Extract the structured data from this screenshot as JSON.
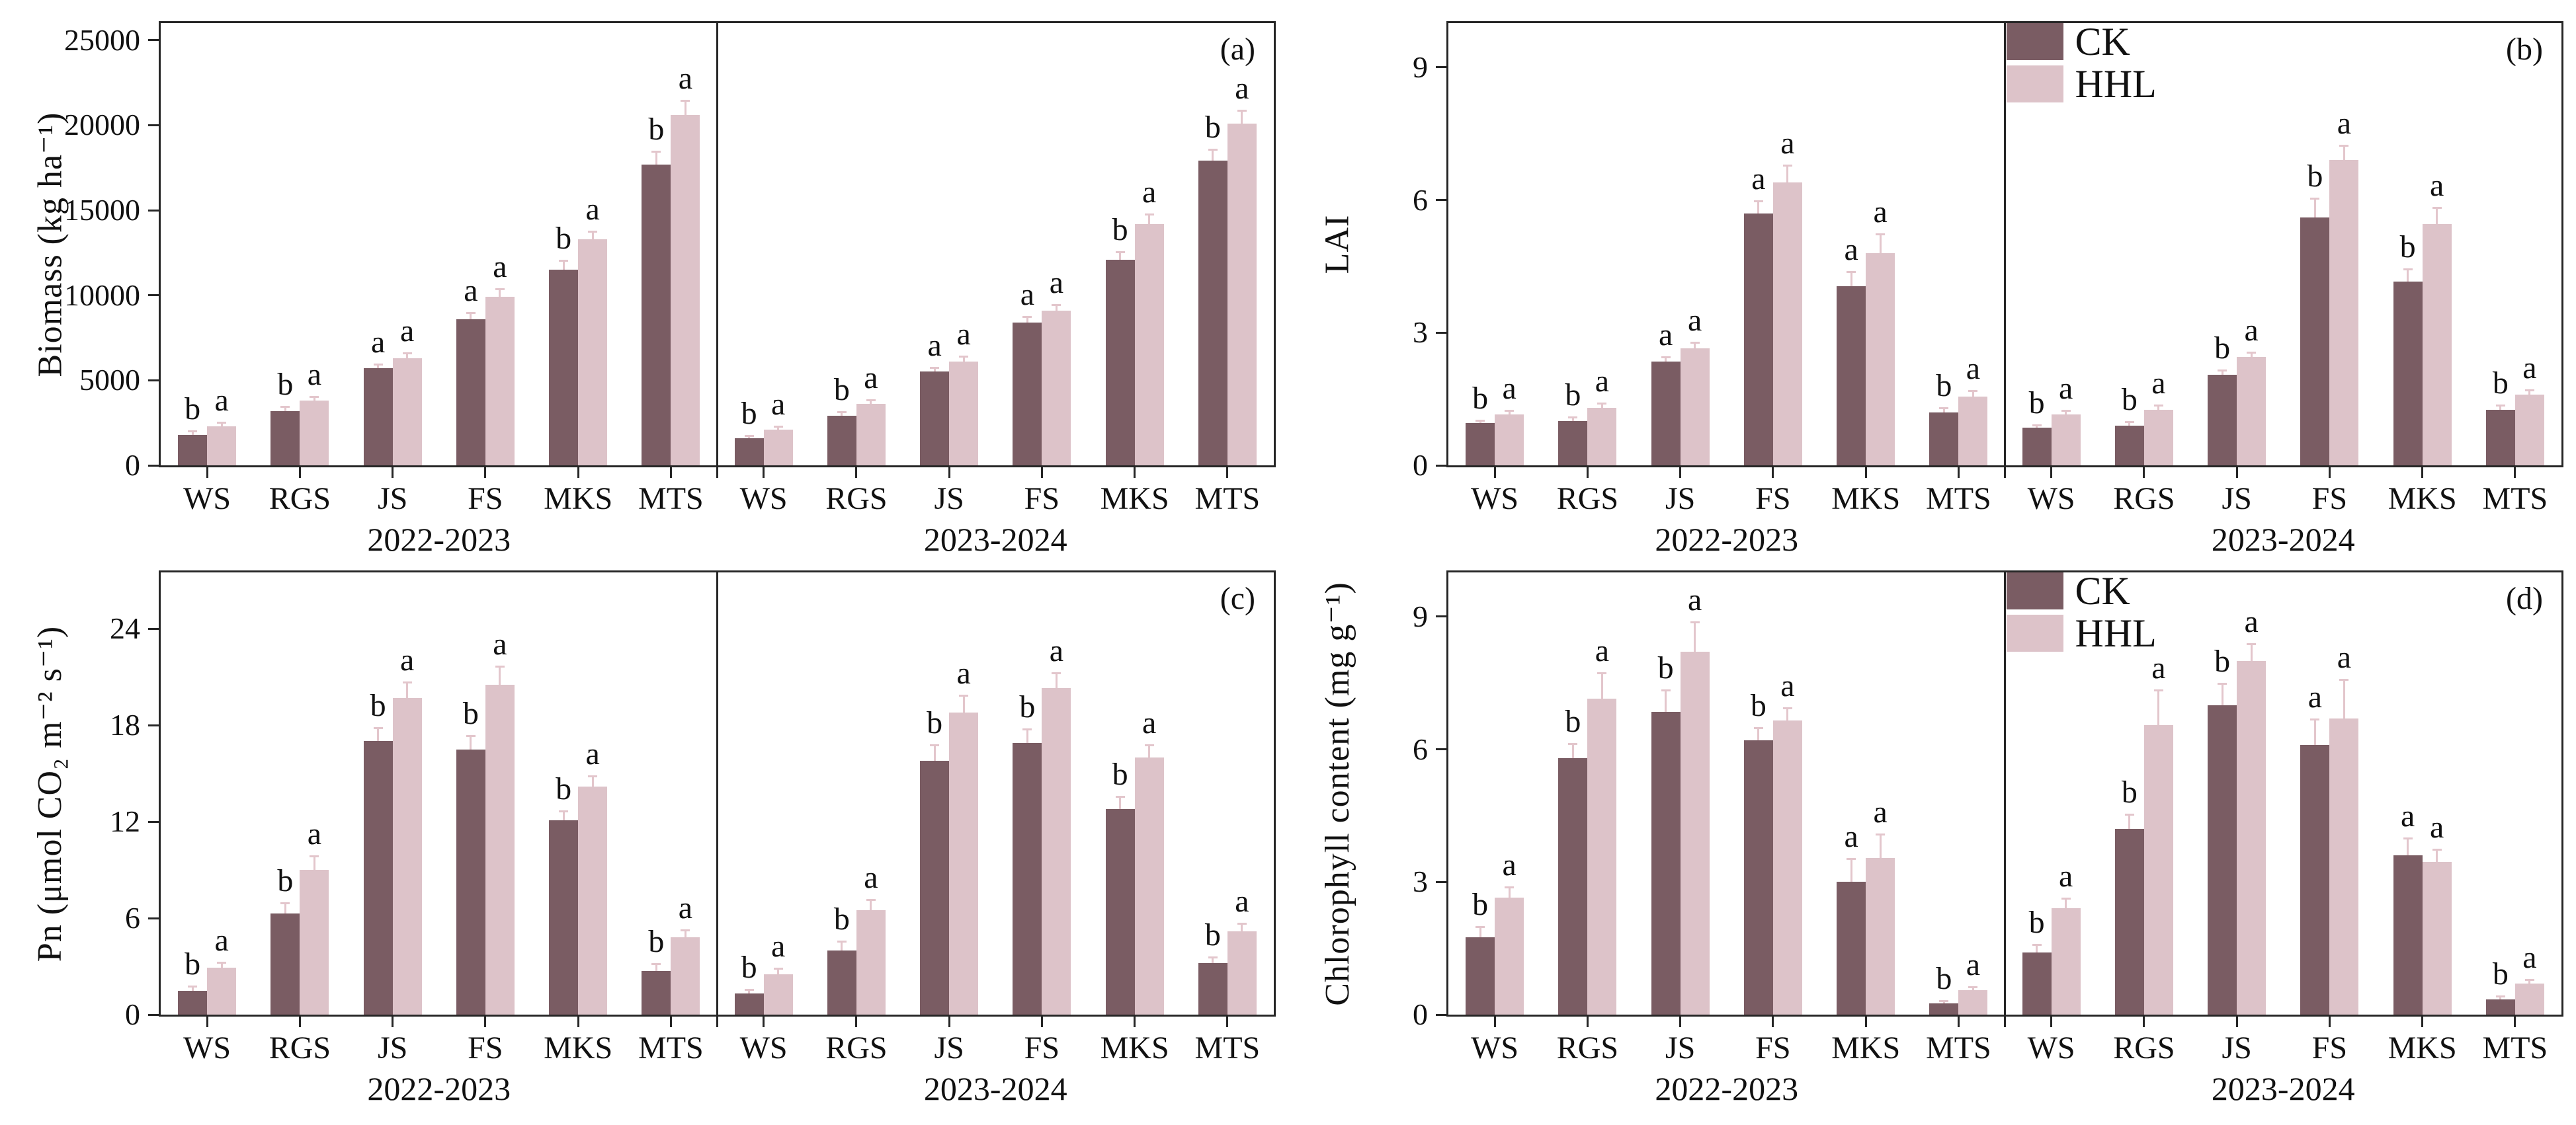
{
  "figure": {
    "kind": "four-panel grouped bar figure",
    "colors": {
      "ck_bar": "#7a5c63",
      "hhl_bar": "#ddc3c9",
      "error_bar": "#e3c6cc",
      "axis": "#262626",
      "text": "#111111"
    },
    "legend": {
      "entries": [
        {
          "label": "CK",
          "color": "#7a5c63"
        },
        {
          "label": "HHL",
          "color": "#ddc3c9"
        }
      ]
    }
  },
  "chart_data": [
    {
      "type": "bar",
      "panel_label": "(a)",
      "ylabel": "Biomass (kg ha⁻¹)",
      "yticks": [
        0,
        5000,
        10000,
        15000,
        20000,
        25000
      ],
      "ylim": [
        0,
        26000
      ],
      "categories": [
        "WS",
        "RGS",
        "JS",
        "FS",
        "MKS",
        "MTS"
      ],
      "show_legend": false,
      "groups": [
        {
          "year": "2022-2023",
          "series": [
            {
              "name": "CK",
              "values": [
                1800,
                3200,
                5700,
                8600,
                11500,
                17700
              ],
              "errors": [
                250,
                300,
                300,
                400,
                600,
                800
              ],
              "letters": [
                "b",
                "b",
                "a",
                "a",
                "b",
                "b"
              ]
            },
            {
              "name": "HHL",
              "values": [
                2300,
                3800,
                6300,
                9900,
                13300,
                20600
              ],
              "errors": [
                250,
                300,
                350,
                500,
                500,
                900
              ],
              "letters": [
                "a",
                "a",
                "a",
                "a",
                "a",
                "a"
              ]
            }
          ]
        },
        {
          "year": "2023-2024",
          "series": [
            {
              "name": "CK",
              "values": [
                1600,
                2900,
                5500,
                8400,
                12100,
                17900
              ],
              "errors": [
                200,
                300,
                300,
                400,
                500,
                700
              ],
              "letters": [
                "b",
                "b",
                "a",
                "a",
                "b",
                "b"
              ]
            },
            {
              "name": "HHL",
              "values": [
                2100,
                3600,
                6100,
                9100,
                14200,
                20100
              ],
              "errors": [
                250,
                300,
                350,
                400,
                600,
                800
              ],
              "letters": [
                "a",
                "a",
                "a",
                "a",
                "a",
                "a"
              ]
            }
          ]
        }
      ]
    },
    {
      "type": "bar",
      "panel_label": "(b)",
      "ylabel": "LAI",
      "yticks": [
        0,
        3,
        6,
        9
      ],
      "ylim": [
        0,
        10
      ],
      "categories": [
        "WS",
        "RGS",
        "JS",
        "FS",
        "MKS",
        "MTS"
      ],
      "show_legend": true,
      "groups": [
        {
          "year": "2022-2023",
          "series": [
            {
              "name": "CK",
              "values": [
                0.95,
                1.0,
                2.35,
                5.7,
                4.05,
                1.2
              ],
              "errors": [
                0.08,
                0.1,
                0.12,
                0.3,
                0.35,
                0.12
              ],
              "letters": [
                "b",
                "b",
                "a",
                "a",
                "a",
                "b"
              ]
            },
            {
              "name": "HHL",
              "values": [
                1.15,
                1.3,
                2.65,
                6.4,
                4.8,
                1.55
              ],
              "errors": [
                0.1,
                0.12,
                0.15,
                0.4,
                0.45,
                0.15
              ],
              "letters": [
                "a",
                "a",
                "a",
                "a",
                "a",
                "a"
              ]
            }
          ]
        },
        {
          "year": "2023-2024",
          "series": [
            {
              "name": "CK",
              "values": [
                0.85,
                0.9,
                2.05,
                5.6,
                4.15,
                1.25
              ],
              "errors": [
                0.08,
                0.1,
                0.12,
                0.45,
                0.3,
                0.12
              ],
              "letters": [
                "b",
                "b",
                "b",
                "b",
                "b",
                "b"
              ]
            },
            {
              "name": "HHL",
              "values": [
                1.15,
                1.25,
                2.45,
                6.9,
                5.45,
                1.6
              ],
              "errors": [
                0.1,
                0.12,
                0.12,
                0.35,
                0.4,
                0.12
              ],
              "letters": [
                "a",
                "a",
                "a",
                "a",
                "a",
                "a"
              ]
            }
          ]
        }
      ]
    },
    {
      "type": "bar",
      "panel_label": "(c)",
      "ylabel": "Pn (μmol CO₂ m⁻² s⁻¹)",
      "yticks": [
        0,
        6,
        12,
        18,
        24
      ],
      "ylim": [
        0,
        27.5
      ],
      "categories": [
        "WS",
        "RGS",
        "JS",
        "FS",
        "MKS",
        "MTS"
      ],
      "show_legend": false,
      "groups": [
        {
          "year": "2022-2023",
          "series": [
            {
              "name": "CK",
              "values": [
                1.5,
                6.3,
                17.0,
                16.5,
                12.1,
                2.7
              ],
              "errors": [
                0.3,
                0.7,
                0.9,
                0.9,
                0.6,
                0.5
              ],
              "letters": [
                "b",
                "b",
                "b",
                "b",
                "b",
                "b"
              ]
            },
            {
              "name": "HHL",
              "values": [
                2.9,
                9.0,
                19.7,
                20.5,
                14.2,
                4.8
              ],
              "errors": [
                0.4,
                0.9,
                1.0,
                1.2,
                0.7,
                0.5
              ],
              "letters": [
                "a",
                "a",
                "a",
                "a",
                "a",
                "a"
              ]
            }
          ]
        },
        {
          "year": "2023-2024",
          "series": [
            {
              "name": "CK",
              "values": [
                1.3,
                4.0,
                15.8,
                16.9,
                12.8,
                3.2
              ],
              "errors": [
                0.3,
                0.6,
                1.0,
                0.9,
                0.8,
                0.4
              ],
              "letters": [
                "b",
                "b",
                "b",
                "b",
                "b",
                "b"
              ]
            },
            {
              "name": "HHL",
              "values": [
                2.5,
                6.5,
                18.8,
                20.3,
                16.0,
                5.2
              ],
              "errors": [
                0.4,
                0.7,
                1.1,
                1.0,
                0.8,
                0.5
              ],
              "letters": [
                "a",
                "a",
                "a",
                "a",
                "a",
                "a"
              ]
            }
          ]
        }
      ]
    },
    {
      "type": "bar",
      "panel_label": "(d)",
      "ylabel": "Chlorophyll content (mg g⁻¹)",
      "yticks": [
        0,
        3,
        6,
        9
      ],
      "ylim": [
        0,
        10
      ],
      "categories": [
        "WS",
        "RGS",
        "JS",
        "FS",
        "MKS",
        "MTS"
      ],
      "show_legend": true,
      "groups": [
        {
          "year": "2022-2023",
          "series": [
            {
              "name": "CK",
              "values": [
                1.75,
                5.8,
                6.85,
                6.2,
                3.0,
                0.25
              ],
              "errors": [
                0.25,
                0.35,
                0.5,
                0.3,
                0.55,
                0.08
              ],
              "letters": [
                "b",
                "b",
                "b",
                "b",
                "a",
                "b"
              ]
            },
            {
              "name": "HHL",
              "values": [
                2.65,
                7.15,
                8.2,
                6.65,
                3.55,
                0.55
              ],
              "errors": [
                0.25,
                0.6,
                0.7,
                0.3,
                0.55,
                0.1
              ],
              "letters": [
                "a",
                "a",
                "a",
                "a",
                "a",
                "a"
              ]
            }
          ]
        },
        {
          "year": "2023-2024",
          "series": [
            {
              "name": "CK",
              "values": [
                1.4,
                4.2,
                7.0,
                6.1,
                3.6,
                0.35
              ],
              "errors": [
                0.2,
                0.35,
                0.5,
                0.6,
                0.4,
                0.08
              ],
              "letters": [
                "b",
                "b",
                "b",
                "a",
                "a",
                "b"
              ]
            },
            {
              "name": "HHL",
              "values": [
                2.4,
                6.55,
                8.0,
                6.7,
                3.45,
                0.7
              ],
              "errors": [
                0.25,
                0.8,
                0.4,
                0.9,
                0.3,
                0.1
              ],
              "letters": [
                "a",
                "a",
                "a",
                "a",
                "a",
                "a"
              ]
            }
          ]
        }
      ]
    }
  ]
}
